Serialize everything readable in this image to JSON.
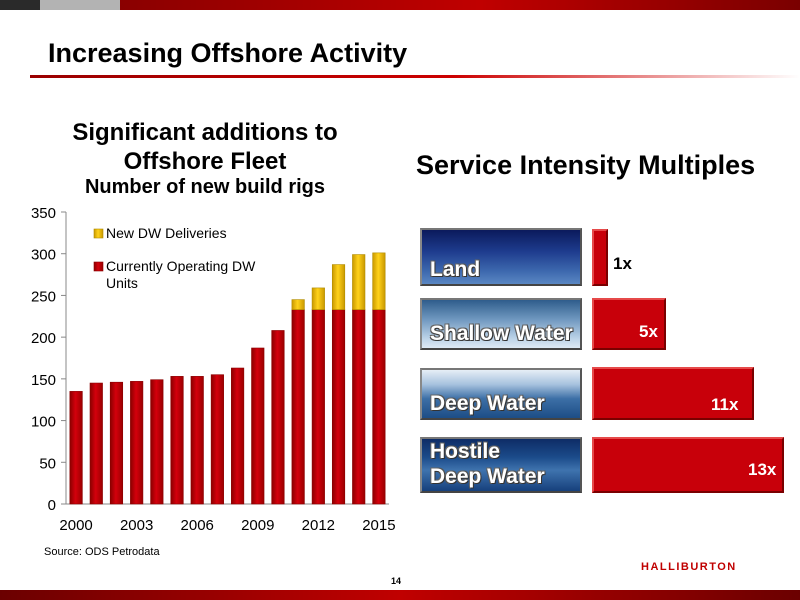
{
  "slide": {
    "title": "Increasing Offshore Activity",
    "page_number": "14",
    "source": "Source: ODS Petrodata",
    "logo_text": "HALLIBURTON",
    "colors": {
      "accent_red": "#c8000a",
      "new_dw_yellow": "#f2c200"
    }
  },
  "chart_data": {
    "type": "bar",
    "stacked": true,
    "title": "Significant additions to Offshore Fleet",
    "subtitle": "Number of new build rigs",
    "categories": [
      "2000",
      "2001",
      "2002",
      "2003",
      "2004",
      "2005",
      "2006",
      "2007",
      "2008",
      "2009",
      "2010",
      "2011",
      "2012",
      "2013",
      "2014",
      "2015"
    ],
    "series": [
      {
        "name": "Currently Operating DW Units",
        "color": "#c8000a",
        "values": [
          135,
          145,
          146,
          147,
          149,
          153,
          153,
          155,
          163,
          187,
          208,
          233,
          233,
          233,
          233,
          233
        ]
      },
      {
        "name": "New DW Deliveries",
        "color": "#f2c200",
        "values": [
          0,
          0,
          0,
          0,
          0,
          0,
          0,
          0,
          0,
          0,
          0,
          12,
          26,
          54,
          66,
          68
        ]
      }
    ],
    "xticks": [
      "2000",
      "2003",
      "2006",
      "2009",
      "2012",
      "2015"
    ],
    "yticks": [
      "0",
      "50",
      "100",
      "150",
      "200",
      "250",
      "300",
      "350"
    ],
    "ylim": [
      0,
      350
    ],
    "legend_position": "top-left",
    "legend": [
      "New DW Deliveries",
      "Currently Operating DW Units"
    ]
  },
  "intensity": {
    "title": "Service Intensity Multiples",
    "rows": [
      {
        "label": "Land",
        "multiple": 1,
        "value_label": "1x"
      },
      {
        "label": "Shallow Water",
        "multiple": 5,
        "value_label": "5x"
      },
      {
        "label": "Deep Water",
        "multiple": 11,
        "value_label": "11x"
      },
      {
        "label": "Hostile Deep Water",
        "label_line1": "Hostile",
        "label_line2": "Deep Water",
        "multiple": 13,
        "value_label": "13x"
      }
    ]
  }
}
